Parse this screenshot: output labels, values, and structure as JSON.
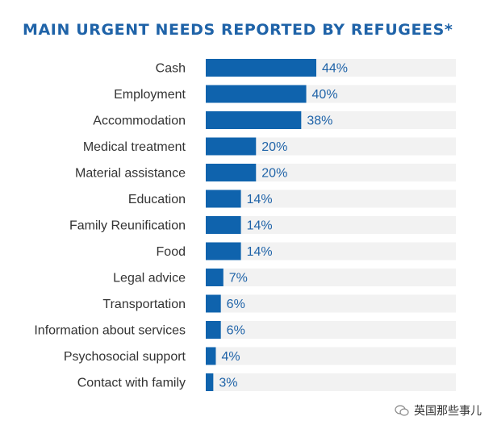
{
  "chart_data": {
    "type": "bar",
    "orientation": "horizontal",
    "title": "MAIN URGENT NEEDS REPORTED BY REFUGEES*",
    "categories": [
      "Cash",
      "Employment",
      "Accommodation",
      "Medical treatment",
      "Material assistance",
      "Education",
      "Family Reunification",
      "Food",
      "Legal advice",
      "Transportation",
      "Information about services",
      "Psychosocial support",
      "Contact with family"
    ],
    "values": [
      44,
      40,
      38,
      20,
      20,
      14,
      14,
      14,
      7,
      6,
      6,
      4,
      3
    ],
    "value_labels": [
      "44%",
      "40%",
      "38%",
      "20%",
      "20%",
      "14%",
      "14%",
      "14%",
      "7%",
      "6%",
      "6%",
      "4%",
      "3%"
    ],
    "xlim": [
      0,
      100
    ],
    "grid": false,
    "colors": {
      "bar": "#0f63ad",
      "track": "#f2f2f2",
      "value_text": "#1f63a8",
      "title": "#1f63a8"
    }
  },
  "watermark": {
    "text": "英国那些事儿"
  }
}
